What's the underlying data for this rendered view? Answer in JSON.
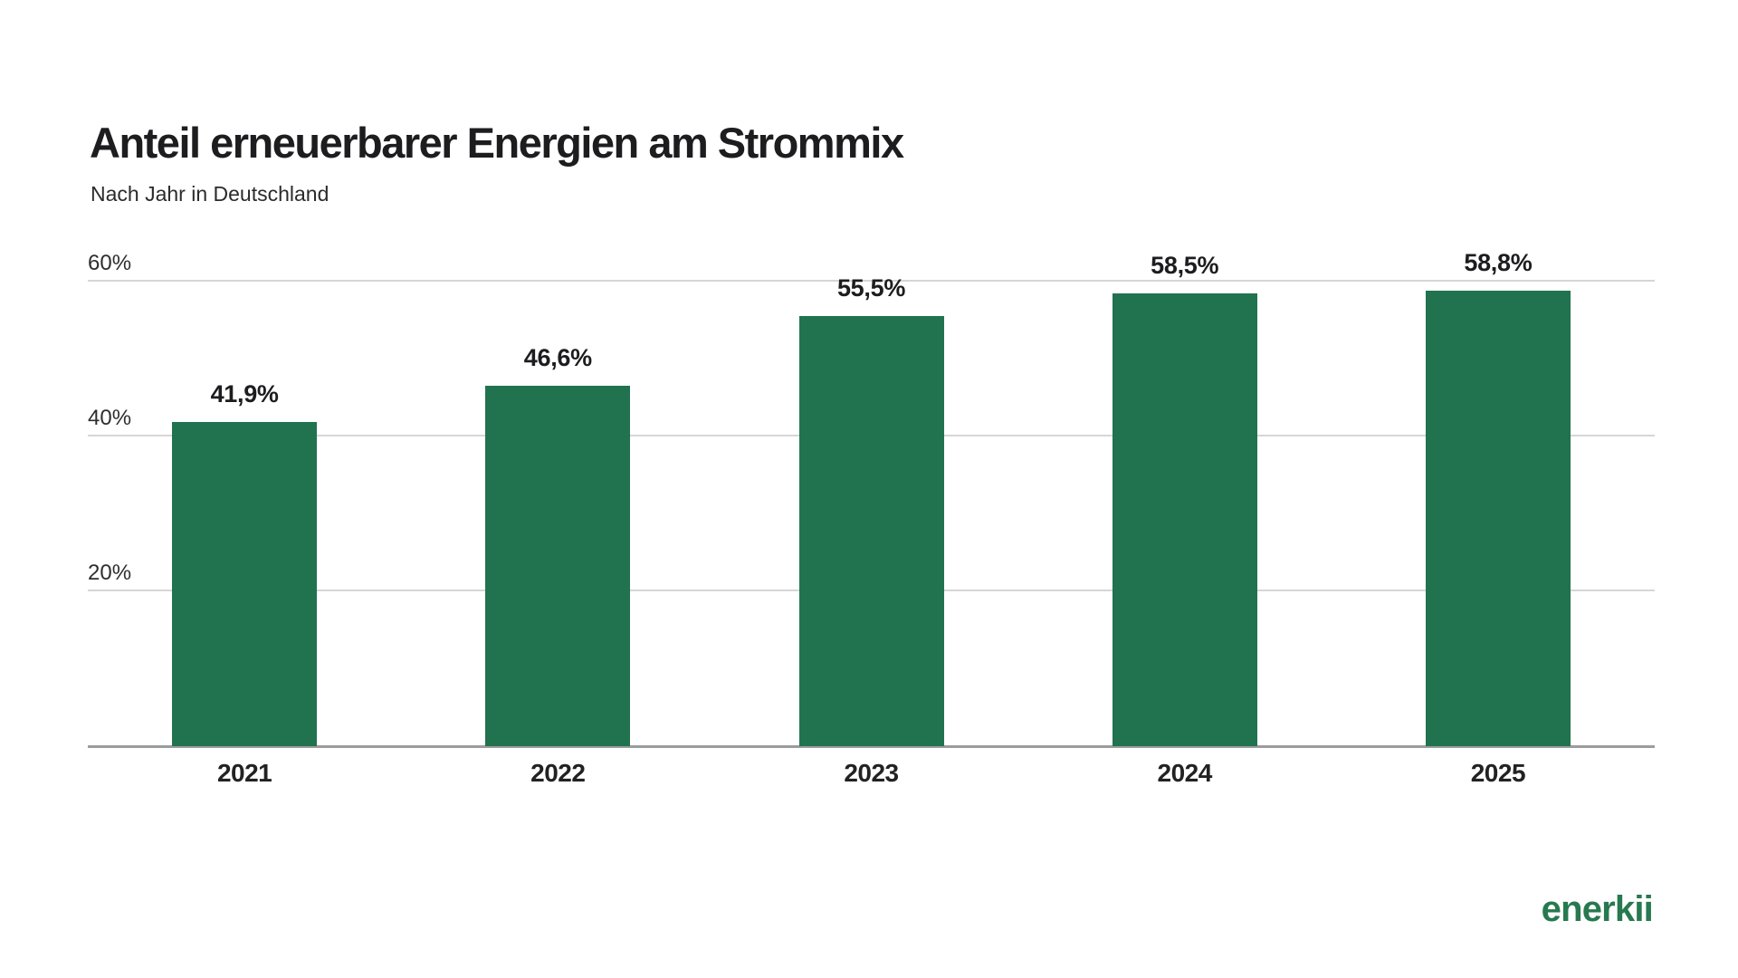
{
  "header": {
    "title": "Anteil erneuerbarer Energien am Strommix",
    "subtitle": "Nach Jahr in Deutschland"
  },
  "brand": {
    "logo_text": "enerkii",
    "logo_color": "#27794f"
  },
  "colors": {
    "bar": "#20734e",
    "gridline": "#d6d6d6",
    "axis_line": "#9c9c9c",
    "title_text": "#1d1d1f",
    "label_text": "#222222"
  },
  "chart_data": {
    "type": "bar",
    "title": "Anteil erneuerbarer Energien am Strommix",
    "subtitle": "Nach Jahr in Deutschland",
    "categories": [
      "2021",
      "2022",
      "2023",
      "2024",
      "2025"
    ],
    "values": [
      41.9,
      46.6,
      55.5,
      58.5,
      58.8
    ],
    "value_labels": [
      "41,9%",
      "46,6%",
      "55,5%",
      "58,5%",
      "58,8%"
    ],
    "xlabel": "",
    "ylabel": "",
    "ylim": [
      0,
      60
    ],
    "yticks": [
      {
        "value": 20,
        "label": "20%"
      },
      {
        "value": 40,
        "label": "40%"
      },
      {
        "value": 60,
        "label": "60%"
      }
    ],
    "grid": true,
    "legend": false,
    "bar_color": "#20734e"
  }
}
